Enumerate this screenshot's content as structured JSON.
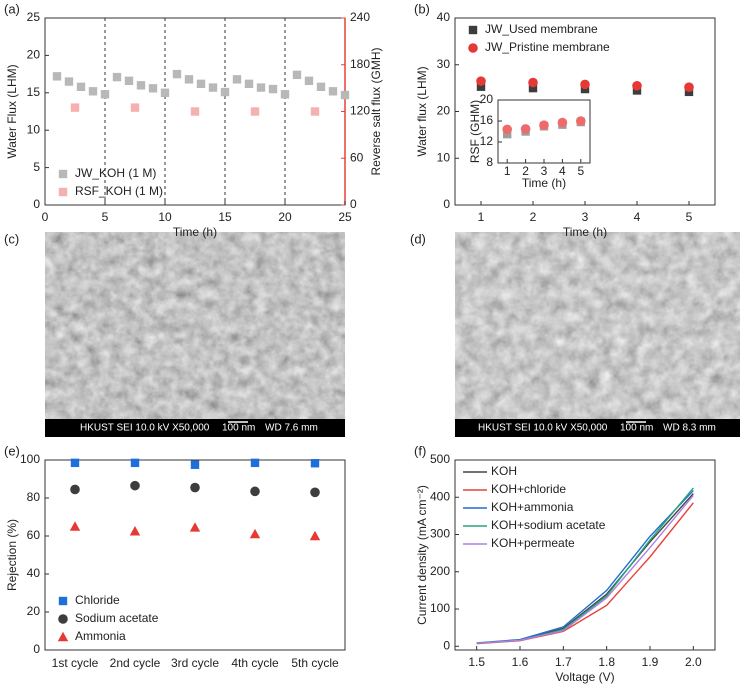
{
  "chart_data": [
    {
      "type": "scatter",
      "label": "(a)",
      "xlabel": "Time (h)",
      "ylabel": "Water Flux (LHM)",
      "y2label": "Reverse salt flux (GMH)",
      "y2_color": "#e8403a",
      "xlim": [
        0,
        25
      ],
      "xticks": [
        0,
        5,
        10,
        15,
        20,
        25
      ],
      "ylim": [
        0,
        25
      ],
      "yticks": [
        0,
        5,
        10,
        15,
        20,
        25
      ],
      "y2lim": [
        0,
        240
      ],
      "y2ticks": [
        0,
        60,
        120,
        180,
        240
      ],
      "dividers": [
        5,
        10,
        15,
        20
      ],
      "legend": "lower left",
      "series": [
        {
          "name": "JW_KOH (1 M)",
          "color": "#b8b8b8",
          "marker": "square",
          "x": [
            1,
            2,
            3,
            4,
            5,
            6,
            7,
            8,
            9,
            10,
            11,
            12,
            13,
            14,
            15,
            16,
            17,
            18,
            19,
            20,
            21,
            22,
            23,
            24,
            25
          ],
          "values": [
            17.2,
            16.5,
            15.8,
            15.2,
            14.8,
            17.1,
            16.6,
            16.0,
            15.6,
            15.0,
            17.5,
            16.8,
            16.2,
            15.7,
            15.1,
            16.8,
            16.2,
            15.7,
            15.5,
            14.8,
            17.4,
            16.6,
            15.8,
            15.2,
            14.7
          ]
        },
        {
          "name": "RSF_KOH (1 M)",
          "color": "#f5b0b0",
          "marker": "square",
          "axis": "y2",
          "x": [
            2.5,
            7.5,
            12.5,
            17.5,
            22.5
          ],
          "values": [
            125,
            125,
            120,
            120,
            120
          ]
        }
      ]
    },
    {
      "type": "scatter",
      "label": "(b)",
      "xlabel": "Time (h)",
      "ylabel": "Water flux (LHM)",
      "legend": "upper left",
      "xlim": [
        0.5,
        5.5
      ],
      "xticks": [
        1,
        2,
        3,
        4,
        5
      ],
      "ylim": [
        0,
        40
      ],
      "yticks": [
        0,
        10,
        20,
        30,
        40
      ],
      "x": [
        1,
        2,
        3,
        4,
        5
      ],
      "series": [
        {
          "name": "JW_Used membrane",
          "color": "#3d3d3d",
          "marker": "square",
          "values": [
            25.3,
            25.0,
            24.8,
            24.5,
            24.2
          ]
        },
        {
          "name": "JW_Pristine membrane",
          "color": "#e53935",
          "marker": "circle",
          "values": [
            26.5,
            26.2,
            25.8,
            25.5,
            25.2
          ]
        }
      ]
    },
    {
      "type": "scatter",
      "xlabel": "Time (h)",
      "ylabel": "RSF (GHM)",
      "xlim": [
        0.5,
        5.5
      ],
      "xticks": [
        1,
        2,
        3,
        4,
        5
      ],
      "ylim": [
        8,
        20
      ],
      "yticks": [
        8,
        12,
        16,
        20
      ],
      "x": [
        1,
        2,
        3,
        4,
        5
      ],
      "series": [
        {
          "color": "#9e9e9e",
          "marker": "square",
          "values": [
            13.5,
            14.0,
            15.0,
            15.3,
            15.8
          ]
        },
        {
          "color": "#ef6b6b",
          "marker": "circle",
          "values": [
            14.4,
            14.5,
            15.2,
            15.7,
            16.0
          ]
        }
      ]
    },
    {
      "type": "scatter",
      "label": "(e)",
      "ylabel": "Rejection (%)",
      "legend": "lower left",
      "categories": [
        "1st cycle",
        "2nd cycle",
        "3rd cycle",
        "4th cycle",
        "5th cycle"
      ],
      "ylim": [
        0,
        100
      ],
      "yticks": [
        0,
        20,
        40,
        60,
        80,
        100
      ],
      "series": [
        {
          "name": "Chloride",
          "color": "#1e6fd9",
          "marker": "square",
          "values": [
            98.5,
            98.5,
            97.5,
            98.5,
            98.3
          ]
        },
        {
          "name": "Sodium acetate",
          "color": "#3d3d3d",
          "marker": "circle",
          "values": [
            84.5,
            86.5,
            85.5,
            83.5,
            83
          ]
        },
        {
          "name": "Ammonia",
          "color": "#e53935",
          "marker": "triangle",
          "values": [
            65,
            62.5,
            64.5,
            61,
            60
          ]
        }
      ]
    },
    {
      "type": "line",
      "label": "(f)",
      "xlabel": "Voltage (V)",
      "ylabel": "Current density (mA cm⁻²)",
      "legend": "upper left",
      "xlim": [
        1.45,
        2.05
      ],
      "xticks": [
        1.5,
        1.6,
        1.7,
        1.8,
        1.9,
        {
          "value": 2,
          "label": "2.0"
        }
      ],
      "ylim": [
        -10,
        500
      ],
      "yticks": [
        0,
        100,
        200,
        300,
        400,
        500
      ],
      "x": [
        1.5,
        1.6,
        1.7,
        1.8,
        1.9,
        2.0
      ],
      "series": [
        {
          "name": "KOH",
          "color": "#444444",
          "values": [
            8,
            17,
            48,
            140,
            280,
            410
          ]
        },
        {
          "name": "KOH+chloride",
          "color": "#e8403a",
          "values": [
            7,
            15,
            40,
            110,
            240,
            385
          ]
        },
        {
          "name": "KOH+ammonia",
          "color": "#1f6fd1",
          "values": [
            9,
            18,
            52,
            150,
            295,
            418
          ]
        },
        {
          "name": "KOH+sodium acetate",
          "color": "#2aa37a",
          "values": [
            8,
            16,
            45,
            135,
            285,
            425
          ]
        },
        {
          "name": "KOH+permeate",
          "color": "#b07fe0",
          "values": [
            8,
            16,
            42,
            130,
            265,
            405
          ]
        }
      ]
    }
  ],
  "images": [
    {
      "label": "(c)",
      "caption": "HKUST  SEI  10.0 kV  X50,000",
      "scale": "100 nm",
      "wd": "WD 7.6 mm"
    },
    {
      "label": "(d)",
      "caption": "HKUST  SEI  10.0 kV  X50,000",
      "scale": "100 nm",
      "wd": "WD 8.3 mm"
    }
  ]
}
